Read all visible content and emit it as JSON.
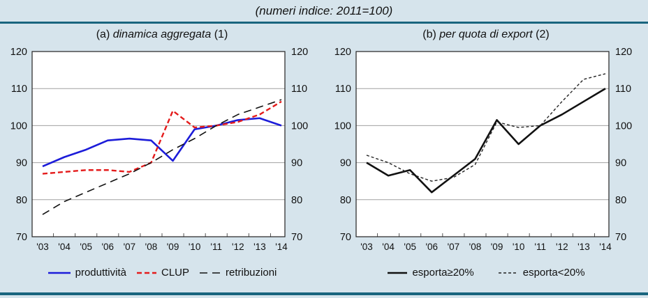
{
  "title": "(numeri indice: 2011=100)",
  "colors": {
    "background": "#d6e4ec",
    "rule": "#19657e",
    "blue": "#1c1cd9",
    "red": "#e41b1b",
    "ink": "#111111",
    "grid": "#a0a0a0"
  },
  "panels": [
    {
      "title_prefix": "(a) ",
      "title_italic": "dinamica aggregata",
      "title_suffix": " (1)",
      "legend": [
        {
          "label": "produttività"
        },
        {
          "label": "CLUP"
        },
        {
          "label": "retribuzioni"
        }
      ]
    },
    {
      "title_prefix": "(b) ",
      "title_italic": "per quota di export",
      "title_suffix": " (2)",
      "legend": [
        {
          "label": "esporta≥20%"
        },
        {
          "label": "esporta<20%"
        }
      ]
    }
  ],
  "chart_data": [
    {
      "type": "line",
      "title": "(a) dinamica aggregata (1)",
      "categories": [
        "'03",
        "'04",
        "'05",
        "'06",
        "'07",
        "'08",
        "'09",
        "'10",
        "'11",
        "'12",
        "'13",
        "'14"
      ],
      "series": [
        {
          "name": "produttività",
          "color": "#1c1cd9",
          "dash": "",
          "width": 2.6,
          "values": [
            89,
            91.5,
            93.5,
            96,
            96.5,
            96,
            90.5,
            99,
            100,
            101.5,
            102,
            100
          ]
        },
        {
          "name": "CLUP",
          "color": "#e41b1b",
          "dash": "7 4",
          "width": 2.4,
          "values": [
            87,
            87.5,
            88,
            88,
            87.5,
            90,
            104,
            99.5,
            100,
            101,
            103,
            106.5
          ]
        },
        {
          "name": "retribuzioni",
          "color": "#111111",
          "dash": "11 7",
          "width": 1.6,
          "values": [
            76,
            79.5,
            82,
            84.5,
            87,
            90,
            93.5,
            96.5,
            100,
            103,
            105,
            107
          ]
        }
      ],
      "ylim": [
        70,
        120
      ],
      "yticks": [
        70,
        80,
        90,
        100,
        110,
        120
      ],
      "grid": "horizontal",
      "legend_position": "bottom",
      "y_axis_labels_on_both_sides": true
    },
    {
      "type": "line",
      "title": "(b) per quota di export (2)",
      "categories": [
        "'03",
        "'04",
        "'05",
        "'06",
        "'07",
        "'08",
        "'09",
        "'10",
        "'11",
        "'12",
        "'13",
        "'14"
      ],
      "series": [
        {
          "name": "esporta≥20%",
          "color": "#111111",
          "dash": "",
          "width": 2.6,
          "values": [
            90,
            86.5,
            88,
            82,
            86.5,
            91,
            101.5,
            95,
            100,
            103,
            106.5,
            110
          ]
        },
        {
          "name": "esporta<20%",
          "color": "#222222",
          "dash": "4 3",
          "width": 1.4,
          "values": [
            92,
            90,
            87,
            85,
            86,
            89.5,
            101,
            99.5,
            100,
            106.5,
            112.5,
            114
          ]
        }
      ],
      "ylim": [
        70,
        120
      ],
      "yticks": [
        70,
        80,
        90,
        100,
        110,
        120
      ],
      "grid": "horizontal",
      "legend_position": "bottom",
      "y_axis_labels_on_both_sides": true
    }
  ]
}
